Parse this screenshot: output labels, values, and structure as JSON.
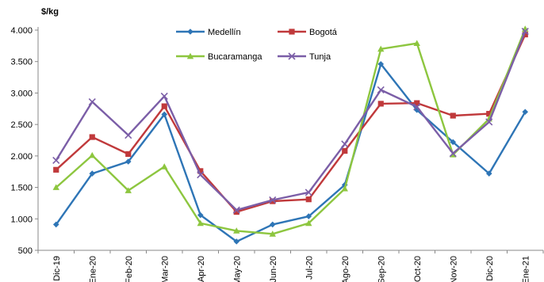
{
  "chart_data": {
    "type": "line",
    "ylabel": "$/kg",
    "ylim": [
      500,
      4000
    ],
    "yticks": [
      "500",
      "1.000",
      "1.500",
      "2.000",
      "2.500",
      "3.000",
      "3.500",
      "4.000"
    ],
    "ytick_values": [
      500,
      1000,
      1500,
      2000,
      2500,
      3000,
      3500,
      4000
    ],
    "categories": [
      "Dic-19",
      "Ene-20",
      "Feb-20",
      "Mar-20",
      "Apr-20",
      "May-20",
      "Jun-20",
      "Jul-20",
      "Ago-20",
      "Sep-20",
      "Oct-20",
      "Nov-20",
      "Dic-20",
      "Ene-21"
    ],
    "legend_position": "top-center, two columns",
    "series": [
      {
        "name": "Medellín",
        "color": "#2E75B6",
        "marker": "diamond",
        "values": [
          910,
          1720,
          1910,
          2660,
          1060,
          640,
          910,
          1040,
          1540,
          3460,
          2730,
          2220,
          1720,
          2700
        ]
      },
      {
        "name": "Bogotá",
        "color": "#C0393B",
        "marker": "square",
        "values": [
          1780,
          2300,
          2030,
          2790,
          1760,
          1110,
          1280,
          1310,
          2080,
          2830,
          2840,
          2640,
          2670,
          3930
        ]
      },
      {
        "name": "Bucaramanga",
        "color": "#8DC63F",
        "marker": "triangle",
        "values": [
          1500,
          2010,
          1450,
          1830,
          930,
          810,
          760,
          930,
          1480,
          3700,
          3790,
          2020,
          2590,
          4020
        ]
      },
      {
        "name": "Tunja",
        "color": "#7B5EA7",
        "marker": "x",
        "values": [
          1930,
          2860,
          2330,
          2950,
          1700,
          1140,
          1300,
          1420,
          2190,
          3050,
          2780,
          2040,
          2540,
          3980
        ]
      }
    ]
  }
}
